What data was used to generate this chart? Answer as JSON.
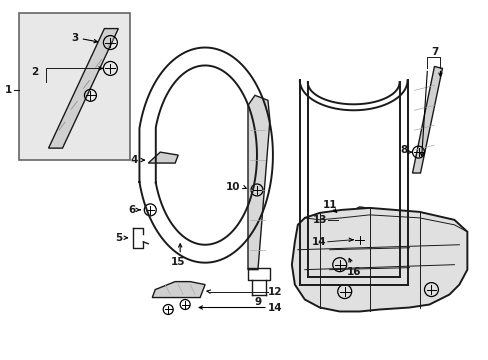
{
  "bg_color": "#ffffff",
  "line_color": "#1a1a1a",
  "box_fill": "#ececec",
  "fig_width": 4.89,
  "fig_height": 3.6,
  "dpi": 100
}
